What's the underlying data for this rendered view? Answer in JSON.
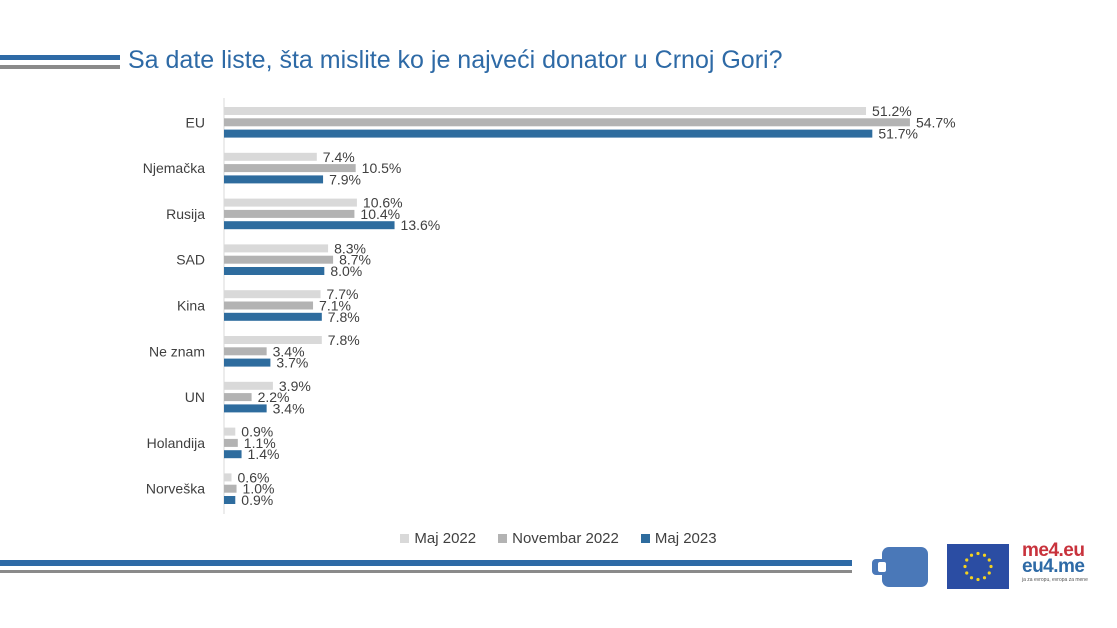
{
  "title": "Sa date liste, šta mislite ko je najveći donator u Crnoj Gori?",
  "logo": {
    "line1": "me4.eu",
    "line2": "eu4.me",
    "tagline": "ja za evropu, evropa za mene"
  },
  "chart_data": {
    "type": "bar",
    "orientation": "horizontal",
    "categories": [
      "EU",
      "Njemačka",
      "Rusija",
      "SAD",
      "Kina",
      "Ne znam",
      "UN",
      "Holandija",
      "Norveška"
    ],
    "series": [
      {
        "name": "Maj 2022",
        "color": "#d9d9d9",
        "values": [
          51.2,
          7.4,
          10.6,
          8.3,
          7.7,
          7.8,
          3.9,
          0.9,
          0.6
        ],
        "labels": [
          "51.2%",
          "7.4%",
          "10.6%",
          "8.3%",
          "7.7%",
          "7.8%",
          "3.9%",
          "0.9%",
          "0.6%"
        ]
      },
      {
        "name": "Novembar 2022",
        "color": "#b3b3b3",
        "values": [
          54.7,
          10.5,
          10.4,
          8.7,
          7.1,
          3.4,
          2.2,
          1.1,
          1.0
        ],
        "labels": [
          "54.7%",
          "10.5%",
          "10.4%",
          "8.7%",
          "7.1%",
          "3.4%",
          "2.2%",
          "1.1%",
          "1.0%"
        ]
      },
      {
        "name": "Maj 2023",
        "color": "#2e6c9e",
        "values": [
          51.7,
          7.9,
          13.6,
          8.0,
          7.8,
          3.7,
          3.4,
          1.4,
          0.9
        ],
        "labels": [
          "51.7%",
          "7.9%",
          "13.6%",
          "8.0%",
          "7.8%",
          "3.7%",
          "3.4%",
          "1.4%",
          "0.9%"
        ]
      }
    ],
    "xlim": [
      0,
      60
    ],
    "grid": false,
    "legend_position": "bottom"
  }
}
